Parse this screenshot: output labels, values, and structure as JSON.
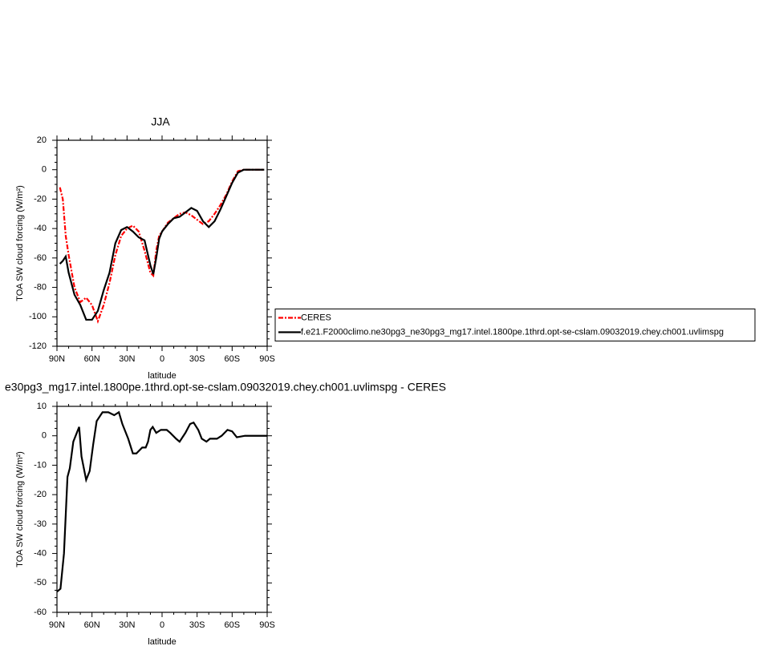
{
  "chart_data": [
    {
      "type": "line",
      "title": "JJA",
      "xlabel": "latitude",
      "ylabel": "TOA SW cloud forcing (W/m²)",
      "x": [
        87.5,
        85,
        82.5,
        80,
        75,
        70,
        65,
        60,
        55,
        50,
        45,
        40,
        35,
        30,
        25,
        20,
        15,
        10,
        7.5,
        5,
        2.5,
        0,
        -5,
        -10,
        -15,
        -20,
        -25,
        -30,
        -35,
        -40,
        -45,
        -50,
        -55,
        -60,
        -65,
        -70,
        -75,
        -80,
        -85,
        -87.5
      ],
      "series": [
        {
          "name": "CERES",
          "color": "#ff0000",
          "dash": "dashed",
          "values": [
            -12,
            -20,
            -45,
            -58,
            -80,
            -90,
            -87,
            -92,
            -103,
            -92,
            -77,
            -58,
            -45,
            -40,
            -38,
            -42,
            -55,
            -70,
            -72,
            -55,
            -45,
            -42,
            -36,
            -33,
            -30,
            -29,
            -31,
            -34,
            -37,
            -35,
            -30,
            -24,
            -17,
            -8,
            -1,
            0,
            0,
            0,
            0,
            0
          ]
        },
        {
          "name": "f.e21.F2000climo.ne30pg3_ne30pg3_mg17.intel.1800pe.1thrd.opt-se-cslam.09032019.chey.ch001.uvlimspg",
          "color": "#000000",
          "dash": "solid",
          "values": [
            -64,
            -62,
            -59,
            -70,
            -85,
            -92,
            -102,
            -102,
            -96,
            -82,
            -70,
            -50,
            -41,
            -39,
            -42,
            -46,
            -48,
            -65,
            -71,
            -60,
            -47,
            -42,
            -37,
            -33,
            -32,
            -29,
            -26,
            -28,
            -35,
            -39,
            -35,
            -27,
            -18,
            -9,
            -2,
            0,
            0,
            0,
            0,
            0
          ]
        }
      ],
      "xlim": [
        90,
        -90
      ],
      "xticks": [
        {
          "value": 90,
          "label": "90N"
        },
        {
          "value": 60,
          "label": "60N"
        },
        {
          "value": 30,
          "label": "30N"
        },
        0,
        {
          "value": -30,
          "label": "30S"
        },
        {
          "value": -60,
          "label": "60S"
        },
        {
          "value": -90,
          "label": "90S"
        }
      ],
      "ylim": [
        -120,
        20
      ],
      "yticks": [
        -120,
        -100,
        -80,
        -60,
        -40,
        -20,
        0,
        20
      ],
      "legend": "right"
    },
    {
      "type": "line",
      "title": "e30pg3_mg17.intel.1800pe.1thrd.opt-se-cslam.09032019.chey.ch001.uvlimspg - CERES",
      "xlabel": "latitude",
      "ylabel": "TOA SW cloud forcing (W/m²)",
      "x": [
        90,
        87,
        84,
        81,
        79,
        76,
        71,
        69,
        65,
        62,
        59,
        56,
        51,
        46,
        41,
        37,
        34,
        29,
        25,
        22,
        17,
        14,
        12,
        10,
        8,
        5,
        1,
        -4,
        -7,
        -12,
        -15,
        -20,
        -24,
        -27,
        -31,
        -34,
        -38,
        -41,
        -47,
        -51,
        -56,
        -60,
        -64,
        -71,
        -90
      ],
      "series": [
        {
          "color": "#000000",
          "dash": "solid",
          "values": [
            -53,
            -52,
            -40,
            -14,
            -11,
            -2,
            3,
            -7,
            -15,
            -12,
            -3,
            5,
            8,
            8,
            7,
            8,
            4,
            -1,
            -6,
            -6,
            -4,
            -4,
            -2,
            2,
            3,
            1,
            2,
            2,
            1,
            -1,
            -2,
            1,
            4,
            4.5,
            2,
            -1,
            -2,
            -1,
            -1,
            0,
            2,
            1.5,
            -0.5,
            0,
            0
          ]
        }
      ],
      "xlim": [
        90,
        -90
      ],
      "xticks": [
        {
          "value": 90,
          "label": "90N"
        },
        {
          "value": 60,
          "label": "60N"
        },
        {
          "value": 30,
          "label": "30N"
        },
        0,
        {
          "value": -30,
          "label": "30S"
        },
        {
          "value": -60,
          "label": "60S"
        },
        {
          "value": -90,
          "label": "90S"
        }
      ],
      "ylim": [
        -60,
        10
      ],
      "yticks": [
        -60,
        -50,
        -40,
        -30,
        -20,
        -10,
        0,
        10
      ]
    }
  ]
}
